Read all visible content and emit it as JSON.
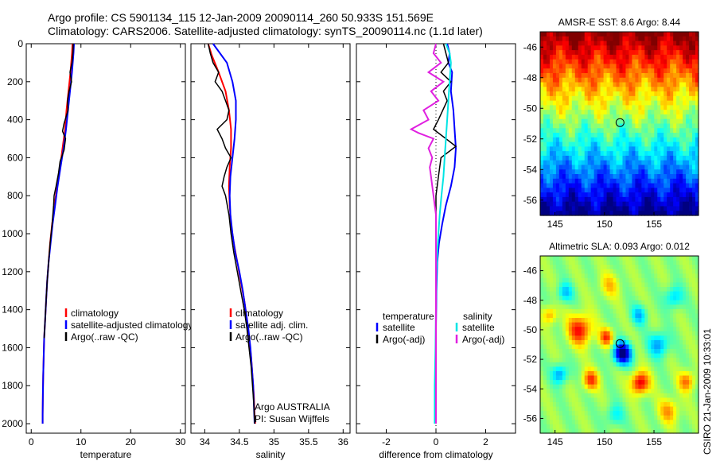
{
  "header": {
    "line1": "Argo profile: CS 5901134_115 12-Jan-2009 20090114_260 50.933S 151.569E",
    "line2": "Climatology: CARS2006. Satellite-adjusted climatology: synTS_20090114.nc (1.1d later)"
  },
  "side_note": "CSIRO 21-Jan-2009 10:33:01",
  "credit": {
    "line1": "Argo AUSTRALIA",
    "line2": "PI: Susan Wijffels"
  },
  "colors": {
    "climatology": "#ff0000",
    "satellite": "#0000ff",
    "argo": "#000000",
    "sat_salinity": "#00e5e5",
    "argo_salinity": "#e020e0"
  },
  "chart_data": [
    {
      "type": "line",
      "xlabel": "temperature",
      "xlim": [
        -1,
        31
      ],
      "xticks": [
        0,
        10,
        20,
        30
      ],
      "ylim": [
        2050,
        0
      ],
      "yticks": [
        0,
        200,
        400,
        600,
        800,
        1000,
        1200,
        1400,
        1600,
        1800,
        2000
      ],
      "legend": {
        "position": "bottom",
        "entries": [
          "climatology",
          "satellite-adjusted climatology",
          "Argo(..raw -QC)"
        ]
      },
      "series": [
        {
          "name": "climatology",
          "color": "#ff0000",
          "width": 2,
          "points": [
            [
              8.3,
              0
            ],
            [
              8.2,
              50
            ],
            [
              7.9,
              150
            ],
            [
              7.5,
              250
            ],
            [
              7.1,
              350
            ],
            [
              6.8,
              450
            ],
            [
              6.3,
              550
            ],
            [
              5.8,
              650
            ],
            [
              5.2,
              750
            ],
            [
              4.7,
              850
            ],
            [
              4.2,
              950
            ],
            [
              3.8,
              1050
            ],
            [
              3.5,
              1150
            ],
            [
              3.2,
              1250
            ],
            [
              3.0,
              1350
            ],
            [
              2.8,
              1450
            ],
            [
              2.6,
              1550
            ],
            [
              2.5,
              1650
            ],
            [
              2.4,
              1750
            ],
            [
              2.35,
              1850
            ],
            [
              2.3,
              1950
            ],
            [
              2.3,
              2000
            ]
          ]
        },
        {
          "name": "satellite-adjusted climatology",
          "color": "#0000ff",
          "width": 2,
          "points": [
            [
              8.6,
              0
            ],
            [
              8.5,
              50
            ],
            [
              8.2,
              150
            ],
            [
              7.8,
              250
            ],
            [
              7.4,
              350
            ],
            [
              7.0,
              450
            ],
            [
              6.5,
              550
            ],
            [
              5.9,
              650
            ],
            [
              5.3,
              750
            ],
            [
              4.8,
              850
            ],
            [
              4.3,
              950
            ],
            [
              3.9,
              1050
            ],
            [
              3.5,
              1150
            ],
            [
              3.2,
              1250
            ],
            [
              3.0,
              1350
            ],
            [
              2.8,
              1450
            ],
            [
              2.6,
              1550
            ],
            [
              2.5,
              1650
            ],
            [
              2.4,
              1750
            ],
            [
              2.35,
              1850
            ],
            [
              2.3,
              1950
            ],
            [
              2.3,
              2000
            ]
          ]
        },
        {
          "name": "Argo(..raw -QC)",
          "color": "#000000",
          "width": 1.5,
          "points": [
            [
              8.44,
              0
            ],
            [
              8.4,
              40
            ],
            [
              8.2,
              100
            ],
            [
              7.8,
              150
            ],
            [
              8.1,
              200
            ],
            [
              7.6,
              250
            ],
            [
              7.3,
              300
            ],
            [
              7.4,
              350
            ],
            [
              6.6,
              420
            ],
            [
              6.3,
              460
            ],
            [
              6.9,
              500
            ],
            [
              6.6,
              560
            ],
            [
              5.8,
              620
            ],
            [
              5.5,
              680
            ],
            [
              5.0,
              750
            ],
            [
              4.6,
              800
            ],
            [
              4.5,
              850
            ],
            [
              4.2,
              950
            ],
            [
              3.8,
              1050
            ],
            [
              3.5,
              1150
            ],
            [
              3.2,
              1250
            ],
            [
              3.0,
              1350
            ],
            [
              2.8,
              1450
            ],
            [
              2.6,
              1550
            ]
          ]
        }
      ]
    },
    {
      "type": "line",
      "xlabel": "salinity",
      "xlim": [
        33.8,
        36.1
      ],
      "xticks": [
        34,
        34.5,
        35,
        35.5,
        36
      ],
      "ylim": [
        2050,
        0
      ],
      "yticks": [
        0,
        200,
        400,
        600,
        800,
        1000,
        1200,
        1400,
        1600,
        1800,
        2000
      ],
      "legend": {
        "position": "bottom",
        "entries": [
          "climatology",
          "satellite adj. clim.",
          "Argo(..raw -QC)"
        ]
      },
      "series": [
        {
          "name": "climatology",
          "color": "#ff0000",
          "width": 2,
          "points": [
            [
              34.05,
              0
            ],
            [
              34.1,
              60
            ],
            [
              34.2,
              150
            ],
            [
              34.3,
              250
            ],
            [
              34.35,
              350
            ],
            [
              34.38,
              450
            ],
            [
              34.38,
              550
            ],
            [
              34.36,
              650
            ],
            [
              34.35,
              750
            ],
            [
              34.36,
              850
            ],
            [
              34.38,
              950
            ],
            [
              34.42,
              1050
            ],
            [
              34.47,
              1150
            ],
            [
              34.52,
              1250
            ],
            [
              34.57,
              1350
            ],
            [
              34.61,
              1450
            ],
            [
              34.64,
              1550
            ],
            [
              34.67,
              1650
            ],
            [
              34.69,
              1750
            ],
            [
              34.71,
              1850
            ],
            [
              34.72,
              1950
            ],
            [
              34.73,
              2000
            ]
          ]
        },
        {
          "name": "satellite adj. clim.",
          "color": "#0000ff",
          "width": 2,
          "points": [
            [
              34.12,
              0
            ],
            [
              34.2,
              40
            ],
            [
              34.32,
              100
            ],
            [
              34.4,
              200
            ],
            [
              34.45,
              300
            ],
            [
              34.45,
              400
            ],
            [
              34.43,
              500
            ],
            [
              34.4,
              600
            ],
            [
              34.37,
              700
            ],
            [
              34.36,
              800
            ],
            [
              34.37,
              900
            ],
            [
              34.4,
              1000
            ],
            [
              34.44,
              1100
            ],
            [
              34.5,
              1200
            ],
            [
              34.55,
              1300
            ],
            [
              34.59,
              1400
            ],
            [
              34.63,
              1500
            ],
            [
              34.66,
              1600
            ],
            [
              34.68,
              1700
            ],
            [
              34.7,
              1800
            ],
            [
              34.71,
              1900
            ],
            [
              34.72,
              2000
            ]
          ]
        },
        {
          "name": "Argo(..raw -QC)",
          "color": "#000000",
          "width": 1.5,
          "points": [
            [
              34.05,
              0
            ],
            [
              34.08,
              50
            ],
            [
              34.12,
              100
            ],
            [
              34.2,
              150
            ],
            [
              34.15,
              200
            ],
            [
              34.25,
              250
            ],
            [
              34.3,
              300
            ],
            [
              34.35,
              350
            ],
            [
              34.32,
              400
            ],
            [
              34.18,
              450
            ],
            [
              34.25,
              500
            ],
            [
              34.3,
              550
            ],
            [
              34.38,
              600
            ],
            [
              34.32,
              650
            ],
            [
              34.28,
              700
            ],
            [
              34.25,
              750
            ],
            [
              34.3,
              800
            ],
            [
              34.35,
              900
            ],
            [
              34.38,
              1000
            ],
            [
              34.42,
              1100
            ],
            [
              34.47,
              1200
            ],
            [
              34.52,
              1300
            ],
            [
              34.57,
              1400
            ],
            [
              34.61,
              1500
            ],
            [
              34.64,
              1600
            ],
            [
              34.67,
              1700
            ],
            [
              34.69,
              1800
            ],
            [
              34.71,
              1900
            ],
            [
              34.72,
              2000
            ]
          ]
        }
      ]
    },
    {
      "type": "line",
      "xlabel": "difference from climatology",
      "xlim": [
        -3.2,
        3.2
      ],
      "xticks": [
        -2,
        0,
        2
      ],
      "ylim": [
        2050,
        0
      ],
      "yticks": [
        0,
        200,
        400,
        600,
        800,
        1000,
        1200,
        1400,
        1600,
        1800,
        2000
      ],
      "legend": {
        "position": "bottom",
        "left_title": "temperature",
        "right_title": "salinity",
        "left_entries": [
          "satellite",
          "Argo(-adj)"
        ],
        "right_entries": [
          "satellite",
          "Argo(-adj)"
        ]
      },
      "series": [
        {
          "name": "temperature satellite",
          "color": "#0000ff",
          "width": 2,
          "points": [
            [
              0.45,
              0
            ],
            [
              0.55,
              50
            ],
            [
              0.5,
              100
            ],
            [
              0.65,
              150
            ],
            [
              0.6,
              250
            ],
            [
              0.7,
              350
            ],
            [
              0.75,
              450
            ],
            [
              0.8,
              550
            ],
            [
              0.75,
              650
            ],
            [
              0.6,
              750
            ],
            [
              0.4,
              850
            ],
            [
              0.25,
              950
            ],
            [
              0.12,
              1050
            ],
            [
              0.05,
              1150
            ],
            [
              0.02,
              1300
            ],
            [
              0,
              1500
            ],
            [
              0,
              1800
            ],
            [
              0,
              2000
            ]
          ]
        },
        {
          "name": "temperature Argo(-adj)",
          "color": "#000000",
          "width": 1.5,
          "points": [
            [
              0.3,
              0
            ],
            [
              0.4,
              50
            ],
            [
              0.5,
              100
            ],
            [
              0.2,
              150
            ],
            [
              0.6,
              200
            ],
            [
              0.3,
              250
            ],
            [
              0.45,
              300
            ],
            [
              0.1,
              400
            ],
            [
              -0.1,
              450
            ],
            [
              0.4,
              500
            ],
            [
              0.8,
              540
            ],
            [
              0.2,
              600
            ],
            [
              0.1,
              700
            ],
            [
              0,
              800
            ],
            [
              0,
              900
            ],
            [
              0,
              1000
            ]
          ]
        },
        {
          "name": "salinity satellite",
          "color": "#00e5e5",
          "width": 2,
          "points": [
            [
              0.4,
              0
            ],
            [
              0.55,
              50
            ],
            [
              0.6,
              100
            ],
            [
              0.55,
              200
            ],
            [
              0.5,
              300
            ],
            [
              0.45,
              400
            ],
            [
              0.4,
              500
            ],
            [
              0.35,
              600
            ],
            [
              0.3,
              700
            ],
            [
              0.22,
              800
            ],
            [
              0.15,
              900
            ],
            [
              0.1,
              1000
            ],
            [
              0.05,
              1100
            ],
            [
              0.02,
              1200
            ],
            [
              0,
              1400
            ],
            [
              -0.02,
              1600
            ],
            [
              -0.05,
              1800
            ],
            [
              -0.05,
              2000
            ]
          ]
        },
        {
          "name": "salinity Argo(-adj)",
          "color": "#e020e0",
          "width": 2,
          "points": [
            [
              0,
              0
            ],
            [
              -0.1,
              50
            ],
            [
              0.2,
              100
            ],
            [
              -0.3,
              150
            ],
            [
              0.3,
              200
            ],
            [
              -0.2,
              250
            ],
            [
              0.1,
              300
            ],
            [
              -0.5,
              350
            ],
            [
              -0.3,
              400
            ],
            [
              -1.0,
              450
            ],
            [
              -0.7,
              470
            ],
            [
              -0.1,
              500
            ],
            [
              -0.3,
              550
            ],
            [
              -0.15,
              600
            ],
            [
              -0.25,
              650
            ],
            [
              -0.2,
              700
            ],
            [
              -0.1,
              800
            ],
            [
              0,
              900
            ],
            [
              0,
              1000
            ],
            [
              0,
              1200
            ],
            [
              0,
              1500
            ],
            [
              0,
              2000
            ]
          ]
        }
      ]
    },
    {
      "type": "heatmap",
      "title": "AMSR-E SST: 8.6 Argo: 8.44",
      "xlim": [
        143.5,
        159.5
      ],
      "xticks": [
        145,
        150,
        155
      ],
      "ylim": [
        -57,
        -45
      ],
      "yticks": [
        -46,
        -48,
        -50,
        -52,
        -54,
        -56
      ],
      "marker": {
        "lon": 151.569,
        "lat": -50.933
      },
      "field": "sea surface temperature (north warm, south cold)"
    },
    {
      "type": "heatmap",
      "title": "Altimetric SLA: 0.093 Argo: 0.012",
      "xlim": [
        143.5,
        159.5
      ],
      "xticks": [
        145,
        150,
        155
      ],
      "ylim": [
        -57,
        -45
      ],
      "yticks": [
        -46,
        -48,
        -50,
        -52,
        -54,
        -56
      ],
      "marker": {
        "lon": 151.569,
        "lat": -50.933
      },
      "field": "sea level anomaly eddies"
    }
  ]
}
